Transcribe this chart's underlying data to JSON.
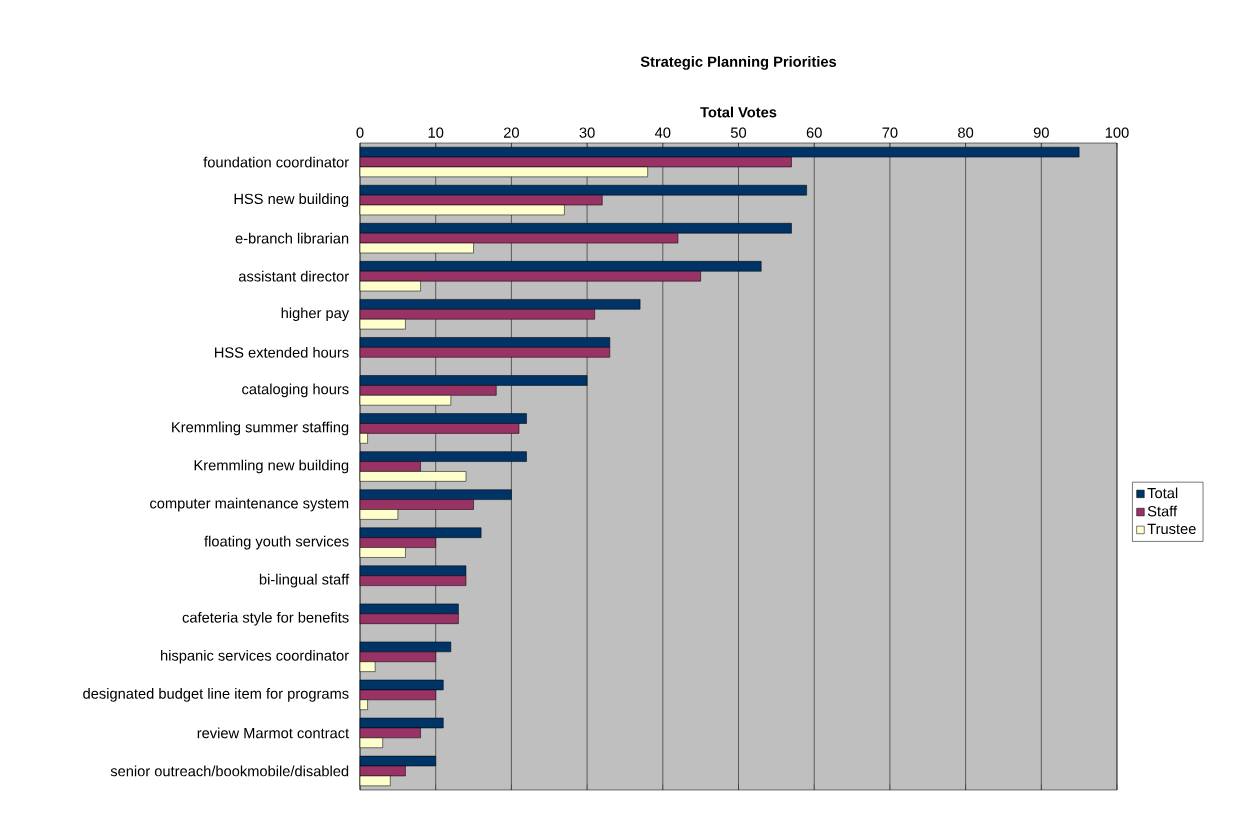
{
  "chart_data": {
    "type": "bar",
    "orientation": "horizontal",
    "title": "Strategic Planning Priorities",
    "xlabel": "Total Votes",
    "categories": [
      "foundation coordinator",
      "HSS new building",
      "e-branch librarian",
      "assistant director",
      "higher pay",
      "HSS extended hours",
      "cataloging hours",
      "Kremmling summer staffing",
      "Kremmling new building",
      "computer maintenance system",
      "floating youth services",
      "bi-lingual staff",
      "cafeteria style for benefits",
      "hispanic services coordinator",
      "designated budget line item for programs",
      "review Marmot contract",
      "senior outreach/bookmobile/disabled"
    ],
    "series": [
      {
        "name": "Total",
        "color": "#003366",
        "values": [
          95,
          59,
          57,
          53,
          37,
          33,
          30,
          22,
          22,
          20,
          16,
          14,
          13,
          12,
          11,
          11,
          10
        ]
      },
      {
        "name": "Staff",
        "color": "#993366",
        "values": [
          57,
          32,
          42,
          45,
          31,
          33,
          18,
          21,
          8,
          15,
          10,
          14,
          13,
          10,
          10,
          8,
          6
        ]
      },
      {
        "name": "Trustee",
        "color": "#ffffcc",
        "values": [
          38,
          27,
          15,
          8,
          6,
          null,
          12,
          1,
          14,
          5,
          6,
          null,
          null,
          2,
          1,
          3,
          4
        ]
      }
    ],
    "xlim": [
      0,
      100
    ],
    "xticks": [
      0,
      10,
      20,
      30,
      40,
      50,
      60,
      70,
      80,
      90,
      100
    ],
    "grid": "x",
    "legend": "right"
  }
}
